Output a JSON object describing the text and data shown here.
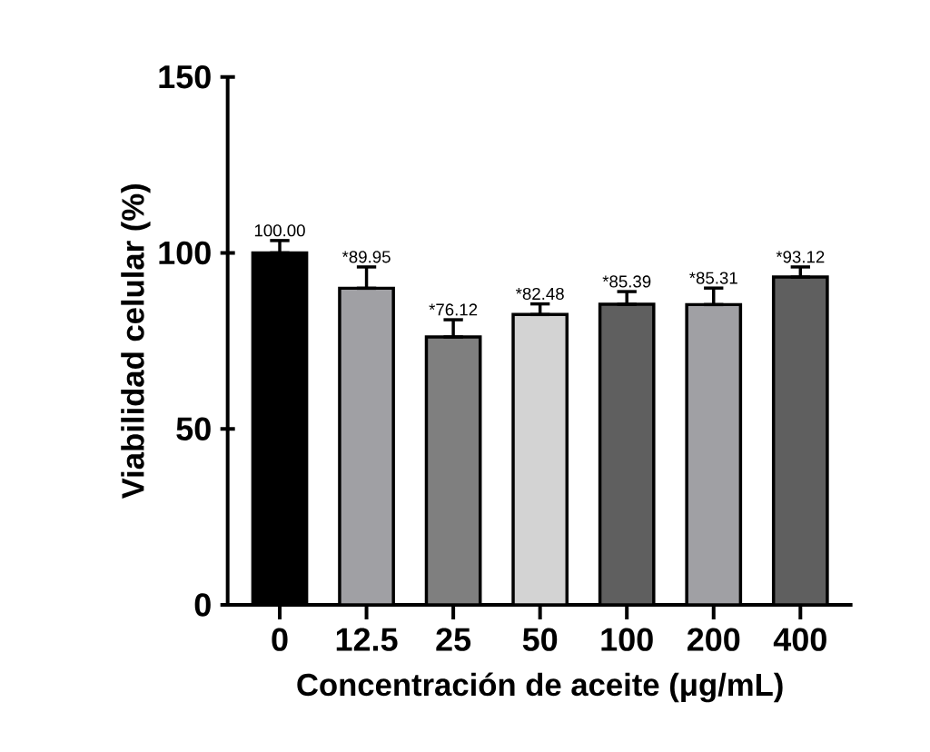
{
  "chart_data": {
    "type": "bar",
    "xlabel": "Concentración de aceite (μg/mL)",
    "ylabel": "Viabilidad celular (%)",
    "categories": [
      "0",
      "12.5",
      "25",
      "50",
      "100",
      "200",
      "400"
    ],
    "values": [
      100.0,
      89.95,
      76.12,
      82.48,
      85.39,
      85.31,
      93.12
    ],
    "colors": [
      "#000000",
      "#a0a0a4",
      "#7f7f7f",
      "#d3d3d3",
      "#5f5f5f",
      "#a0a0a4",
      "#5f5f5f"
    ],
    "errors": [
      [
        100.0,
        103.5
      ],
      [
        89.95,
        96
      ],
      [
        76.12,
        81
      ],
      [
        82.48,
        85.5
      ],
      [
        85.39,
        89
      ],
      [
        85.31,
        90
      ],
      [
        93.12,
        96
      ]
    ],
    "value_labels": [
      "100.00",
      "*89.95",
      "*76.12",
      "*82.48",
      "*85.39",
      "*85.31",
      "*93.12"
    ],
    "ylim": [
      0,
      150
    ],
    "yticks": [
      0,
      50,
      100,
      150
    ],
    "grid": false
  }
}
